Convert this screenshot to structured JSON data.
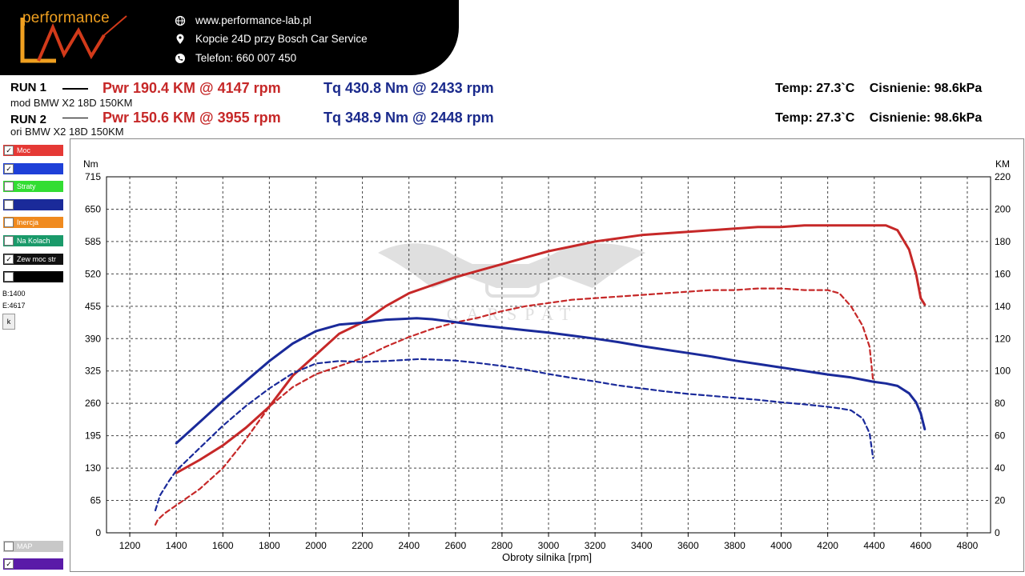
{
  "header": {
    "logo_text": "performance",
    "website": "www.performance-lab.pl",
    "address": "Kopcie 24D przy Bosch Car Service",
    "phone": "Telefon: 660 007 450",
    "icons": [
      "globe-icon",
      "location-pin-icon",
      "phone-icon"
    ]
  },
  "runs": [
    {
      "label": "RUN 1",
      "pwr": "Pwr  190.4 KM @ 4147 rpm",
      "tq": "Tq 430.8 Nm @ 2433 rpm",
      "desc": "mod BMW X2 18D 150KM",
      "temp": "Temp: 27.3`C",
      "pressure": "Cisnienie: 98.6kPa"
    },
    {
      "label": "RUN 2",
      "pwr": "Pwr  150.6 KM @ 3955 rpm",
      "tq": "Tq 348.9 Nm @ 2448 rpm",
      "desc": "ori BMW X2 18D 150KM",
      "temp": "Temp: 27.3`C",
      "pressure": "Cisnienie: 98.6kPa"
    }
  ],
  "legend": [
    {
      "label": "Moc",
      "color": "#e53935",
      "checked": true
    },
    {
      "label": "",
      "color": "#1e40d8",
      "checked": true
    },
    {
      "label": "Straty",
      "color": "#33dd33",
      "checked": false
    },
    {
      "label": "",
      "color": "#1a2a9a",
      "checked": false
    },
    {
      "label": "Inercja",
      "color": "#f08a1e",
      "checked": false
    },
    {
      "label": "Na Kolach",
      "color": "#1a9a6a",
      "checked": false
    },
    {
      "label": "Zew moc str",
      "color": "#111111",
      "checked": true
    },
    {
      "label": "",
      "color": "#000000",
      "checked": false
    }
  ],
  "legend_bottom": [
    {
      "label": "MAP",
      "color": "#c8c8c8",
      "checked": false
    },
    {
      "label": "",
      "color": "#5a1aa8",
      "checked": true
    }
  ],
  "range_info": {
    "b": "B:1400",
    "e": "E:4617",
    "button": "k"
  },
  "watermark": "CARSPAT",
  "chart_data": {
    "type": "line",
    "xlabel": "Obroty silnika [rpm]",
    "ylabel_left": "Nm",
    "ylabel_right": "KM",
    "xlim": [
      1100,
      4900
    ],
    "x_ticks": [
      1200,
      1400,
      1600,
      1800,
      2000,
      2200,
      2400,
      2600,
      2800,
      3000,
      3200,
      3400,
      3600,
      3800,
      4000,
      4200,
      4400,
      4600,
      4800
    ],
    "ylim_left": [
      0,
      715
    ],
    "y_ticks_left": [
      0,
      65,
      130,
      195,
      260,
      325,
      390,
      455,
      520,
      585,
      650,
      715
    ],
    "ylim_right": [
      0,
      220
    ],
    "y_ticks_right": [
      0,
      20,
      40,
      60,
      80,
      100,
      120,
      140,
      160,
      180,
      200,
      220
    ],
    "grid": true,
    "series": [
      {
        "color": "#c62828",
        "style": "solid",
        "axis": "right",
        "x": [
          1400,
          1500,
          1600,
          1700,
          1800,
          1900,
          2000,
          2100,
          2200,
          2300,
          2400,
          2500,
          2600,
          2700,
          2800,
          2900,
          3000,
          3100,
          3200,
          3300,
          3400,
          3500,
          3600,
          3700,
          3800,
          3900,
          4000,
          4100,
          4200,
          4300,
          4400,
          4450,
          4500,
          4550,
          4580,
          4600,
          4617
        ],
        "y": [
          37,
          45,
          54,
          65,
          78,
          97,
          110,
          123,
          130,
          140,
          148,
          153,
          158,
          162,
          166,
          170,
          174,
          177,
          180,
          182,
          184,
          185,
          186,
          187,
          188,
          189,
          189,
          190,
          190,
          190,
          190,
          190,
          187,
          175,
          160,
          145,
          141
        ]
      },
      {
        "color": "#c62828",
        "style": "dashed",
        "axis": "right",
        "x": [
          1310,
          1320,
          1350,
          1400,
          1500,
          1600,
          1700,
          1800,
          1900,
          2000,
          2100,
          2200,
          2300,
          2400,
          2500,
          2600,
          2700,
          2800,
          2900,
          3000,
          3100,
          3200,
          3300,
          3400,
          3500,
          3600,
          3700,
          3800,
          3900,
          4000,
          4100,
          4200,
          4250,
          4300,
          4350,
          4380,
          4395
        ],
        "y": [
          5,
          8,
          12,
          17,
          27,
          40,
          58,
          78,
          90,
          98,
          103,
          108,
          115,
          121,
          126,
          130,
          133,
          137,
          140,
          142,
          144,
          145,
          146,
          147,
          148,
          149,
          150,
          150,
          151,
          151,
          150,
          150,
          148,
          140,
          128,
          115,
          94
        ]
      },
      {
        "color": "#1a2a9a",
        "style": "solid",
        "axis": "left",
        "x": [
          1400,
          1500,
          1600,
          1700,
          1800,
          1900,
          2000,
          2100,
          2200,
          2300,
          2433,
          2500,
          2600,
          2700,
          2800,
          2900,
          3000,
          3100,
          3200,
          3300,
          3400,
          3500,
          3600,
          3700,
          3800,
          3900,
          4000,
          4100,
          4200,
          4300,
          4400,
          4450,
          4500,
          4550,
          4580,
          4600,
          4617
        ],
        "y": [
          180,
          222,
          265,
          305,
          345,
          380,
          405,
          418,
          422,
          428,
          431,
          429,
          423,
          417,
          412,
          407,
          402,
          396,
          390,
          383,
          375,
          368,
          361,
          354,
          346,
          339,
          332,
          325,
          318,
          312,
          303,
          300,
          295,
          280,
          262,
          240,
          208
        ]
      },
      {
        "color": "#1a2a9a",
        "style": "dashed",
        "axis": "left",
        "x": [
          1310,
          1330,
          1370,
          1400,
          1500,
          1600,
          1700,
          1800,
          1900,
          2000,
          2100,
          2200,
          2300,
          2448,
          2500,
          2600,
          2700,
          2800,
          2900,
          3000,
          3100,
          3200,
          3300,
          3400,
          3500,
          3600,
          3700,
          3800,
          3900,
          4000,
          4100,
          4200,
          4250,
          4300,
          4350,
          4380,
          4395
        ],
        "y": [
          45,
          75,
          105,
          125,
          170,
          215,
          255,
          290,
          320,
          340,
          345,
          343,
          345,
          349,
          348,
          346,
          341,
          335,
          328,
          319,
          311,
          304,
          296,
          290,
          284,
          279,
          275,
          271,
          267,
          262,
          258,
          253,
          250,
          246,
          230,
          200,
          150
        ]
      }
    ]
  }
}
